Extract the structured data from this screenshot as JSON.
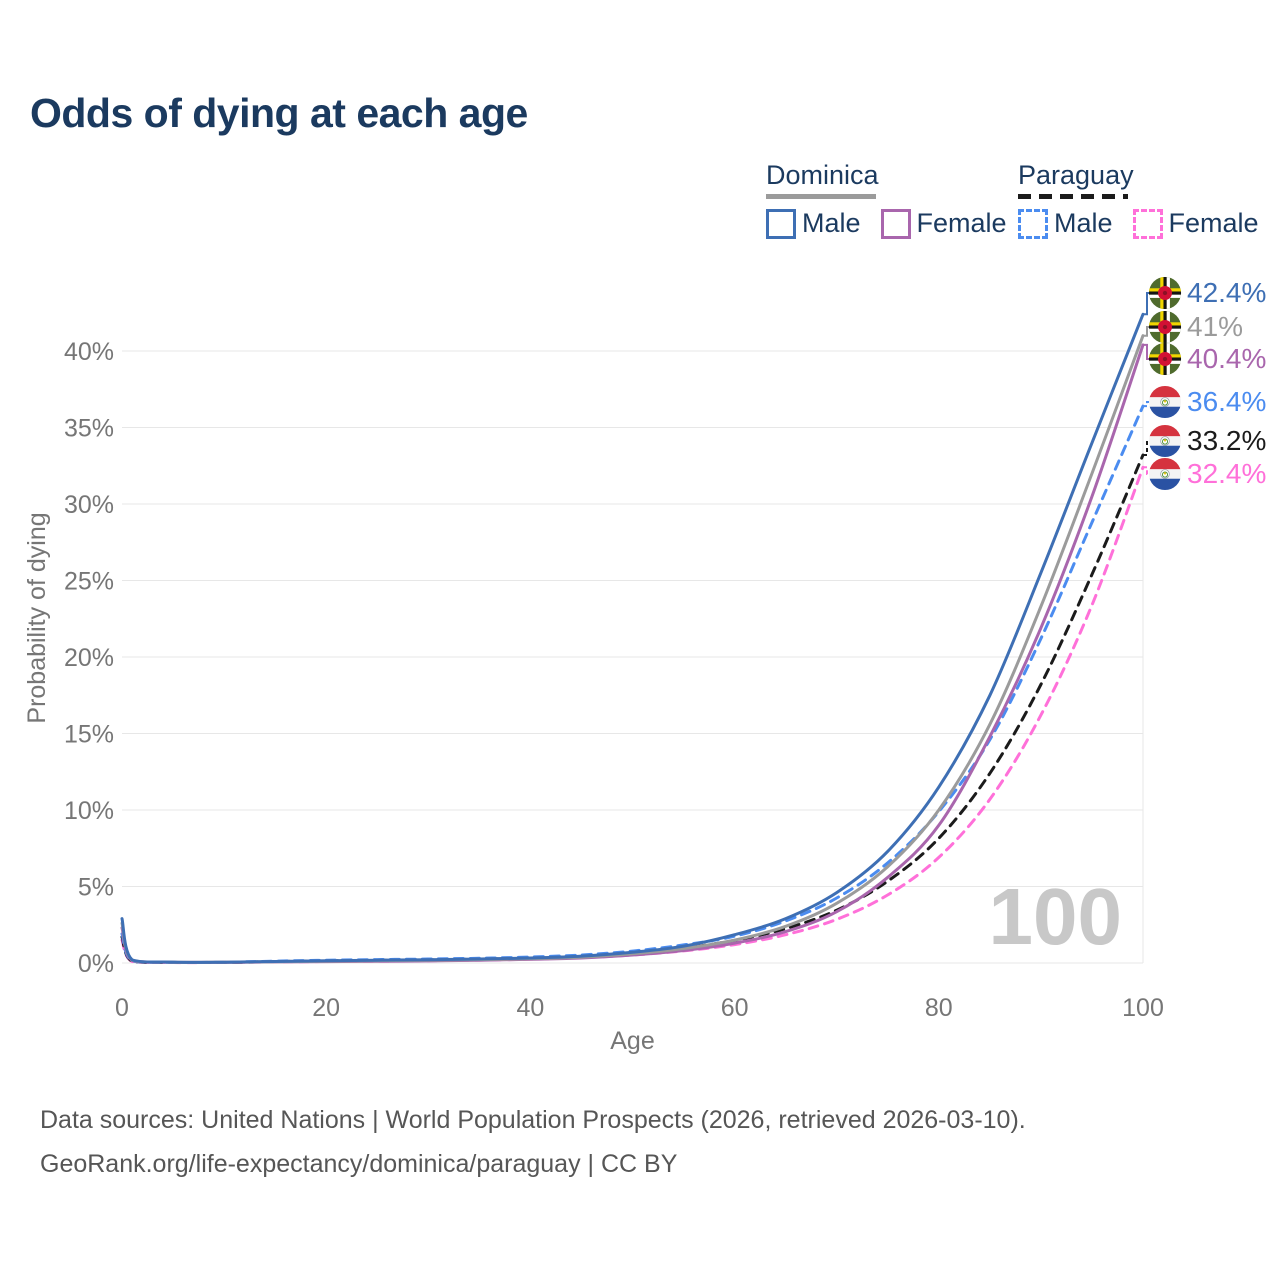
{
  "title": "Odds of dying at each age",
  "watermark": "100",
  "legend": {
    "groups": [
      {
        "name": "Dominica",
        "line_color": "#9b9b9b",
        "line_style": "solid",
        "items": [
          {
            "label": "Male",
            "color": "#3e6fb4"
          },
          {
            "label": "Female",
            "color": "#a966ad"
          }
        ]
      },
      {
        "name": "Paraguay",
        "line_color": "#1b1b1b",
        "line_style": "dashed",
        "items": [
          {
            "label": "Male",
            "color": "#4b8cf0"
          },
          {
            "label": "Female",
            "color": "#ff70d9"
          }
        ]
      }
    ]
  },
  "footer": {
    "line1": "Data sources: United Nations | World Population Prospects (2026, retrieved 2026-03-10).",
    "line2": "GeoRank.org/life-expectancy/dominica/paraguay | CC BY"
  },
  "chart_data": {
    "type": "line",
    "title": "Odds of dying at each age",
    "xlabel": "Age",
    "ylabel": "Probability of dying",
    "xlim": [
      0,
      100
    ],
    "ylim_pct": [
      0,
      44
    ],
    "grid": true,
    "legend_position": "top-right",
    "x_ticks": [
      0,
      20,
      40,
      60,
      80,
      100
    ],
    "y_ticks_pct": [
      0,
      5,
      10,
      15,
      20,
      25,
      30,
      35,
      40
    ],
    "y_tick_format": "%",
    "x": [
      0,
      1,
      5,
      10,
      15,
      20,
      25,
      30,
      35,
      40,
      45,
      50,
      55,
      60,
      65,
      70,
      75,
      80,
      85,
      90,
      95,
      100
    ],
    "series": [
      {
        "name": "Dominica Male",
        "country": "Dominica",
        "sex": "Male",
        "style": "solid",
        "dash": false,
        "flag": "dominica",
        "color": "#3e6fb4",
        "end_label": "42.4%",
        "end_value_pct": 42.4,
        "values_pct": [
          2.9,
          0.2,
          0.06,
          0.05,
          0.1,
          0.15,
          0.18,
          0.21,
          0.26,
          0.33,
          0.45,
          0.7,
          1.1,
          1.85,
          2.9,
          4.6,
          7.3,
          11.5,
          17.5,
          25.5,
          34,
          42.4
        ]
      },
      {
        "name": "Dominica Both sexes",
        "country": "Dominica",
        "sex": "Both",
        "style": "solid",
        "dash": false,
        "flag": "dominica",
        "color": "#9b9b9b",
        "end_label": "41%",
        "end_value_pct": 41,
        "values_pct": [
          2.6,
          0.18,
          0.05,
          0.05,
          0.08,
          0.12,
          0.15,
          0.18,
          0.22,
          0.28,
          0.38,
          0.6,
          0.95,
          1.5,
          2.4,
          3.9,
          6.3,
          10,
          15.6,
          23.3,
          32,
          41
        ]
      },
      {
        "name": "Dominica Female",
        "country": "Dominica",
        "sex": "Female",
        "style": "solid",
        "dash": false,
        "flag": "dominica",
        "color": "#a966ad",
        "end_label": "40.4%",
        "end_value_pct": 40.4,
        "values_pct": [
          2.3,
          0.16,
          0.05,
          0.04,
          0.07,
          0.09,
          0.11,
          0.14,
          0.18,
          0.24,
          0.33,
          0.52,
          0.82,
          1.3,
          2.05,
          3.35,
          5.6,
          9,
          14.8,
          21.9,
          30.5,
          40.4
        ]
      },
      {
        "name": "Paraguay Male",
        "country": "Paraguay",
        "sex": "Male",
        "style": "dashed",
        "dash": true,
        "flag": "paraguay",
        "color": "#4b8cf0",
        "end_label": "36.4%",
        "end_value_pct": 36.4,
        "values_pct": [
          1.9,
          0.13,
          0.04,
          0.05,
          0.12,
          0.18,
          0.22,
          0.26,
          0.31,
          0.39,
          0.52,
          0.78,
          1.18,
          1.75,
          2.75,
          4.25,
          6.55,
          9.9,
          14.6,
          21.2,
          28.8,
          36.4
        ]
      },
      {
        "name": "Paraguay Both sexes",
        "country": "Paraguay",
        "sex": "Both",
        "style": "dashed",
        "dash": true,
        "flag": "paraguay",
        "color": "#1b1b1b",
        "end_label": "33.2%",
        "end_value_pct": 33.2,
        "values_pct": [
          1.7,
          0.11,
          0.04,
          0.04,
          0.09,
          0.14,
          0.17,
          0.2,
          0.25,
          0.31,
          0.43,
          0.64,
          0.97,
          1.48,
          2.25,
          3.45,
          5.35,
          8.15,
          12.4,
          18.2,
          25.4,
          33.2
        ]
      },
      {
        "name": "Paraguay Female",
        "country": "Paraguay",
        "sex": "Female",
        "style": "dashed",
        "dash": true,
        "flag": "paraguay",
        "color": "#ff70d9",
        "end_label": "32.4%",
        "end_value_pct": 32.4,
        "values_pct": [
          1.5,
          0.1,
          0.03,
          0.04,
          0.07,
          0.1,
          0.12,
          0.15,
          0.19,
          0.25,
          0.35,
          0.52,
          0.79,
          1.2,
          1.85,
          2.85,
          4.45,
          6.9,
          10.7,
          16.2,
          23.4,
          32.4
        ]
      }
    ]
  }
}
